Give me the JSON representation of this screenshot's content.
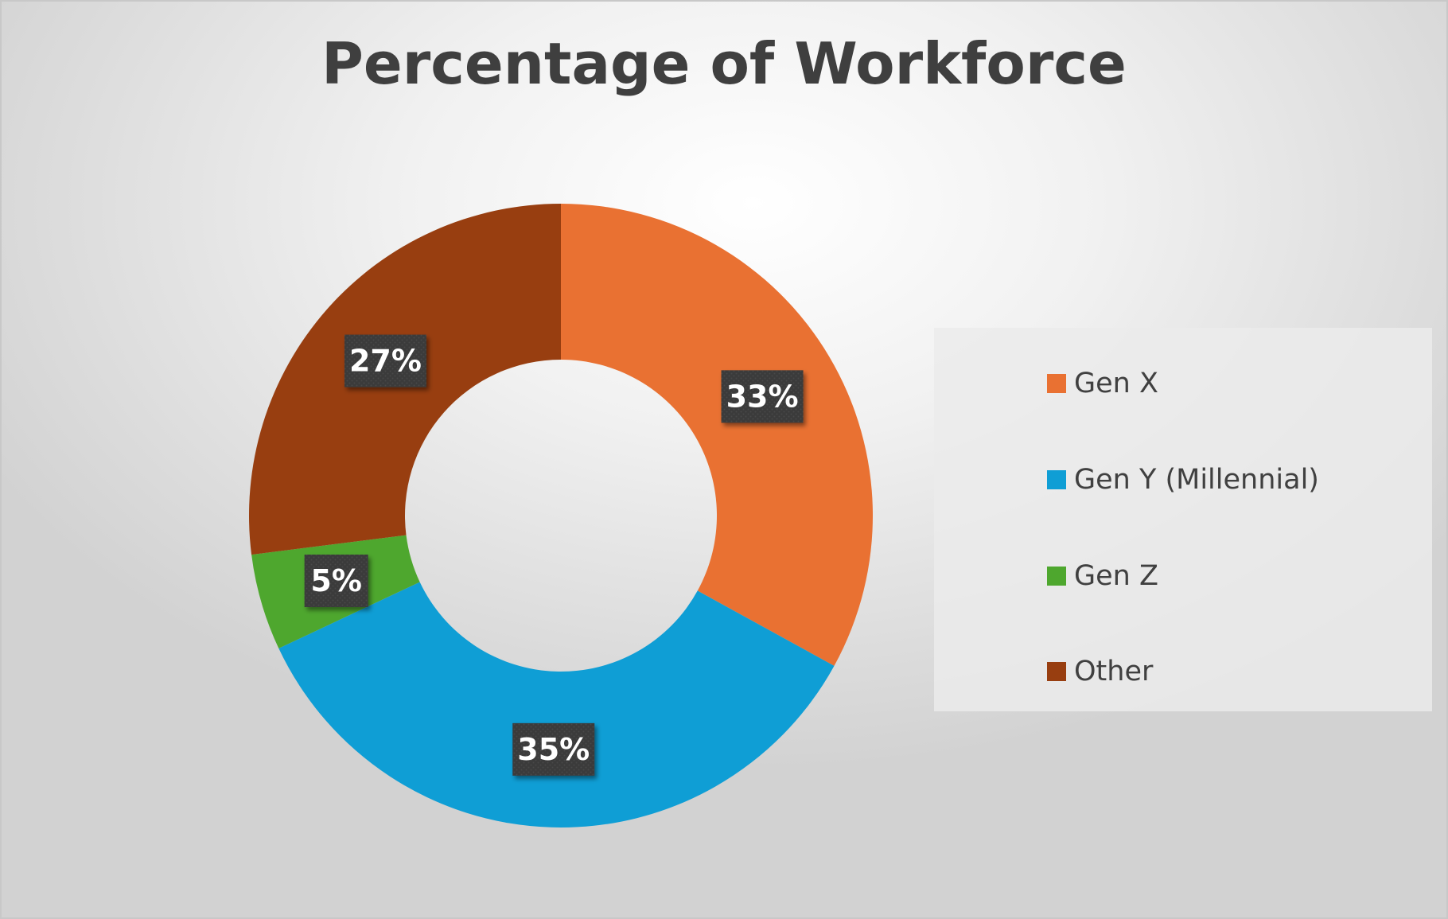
{
  "chart_data": {
    "type": "pie",
    "subtype": "donut",
    "title": "Percentage of Workforce",
    "categories": [
      "Gen X",
      "Gen Y (Millennial)",
      "Gen Z",
      "Other"
    ],
    "values": [
      33,
      35,
      5,
      27
    ],
    "labels": [
      "33%",
      "35%",
      "5%",
      "27%"
    ],
    "colors": [
      "#E97132",
      "#0F9ED5",
      "#4EA72E",
      "#983E10"
    ],
    "start": "top",
    "direction": "clockwise",
    "legend": {
      "position": "right",
      "entries": [
        "Gen X",
        "Gen Y (Millennial)",
        "Gen Z",
        "Other"
      ]
    }
  }
}
